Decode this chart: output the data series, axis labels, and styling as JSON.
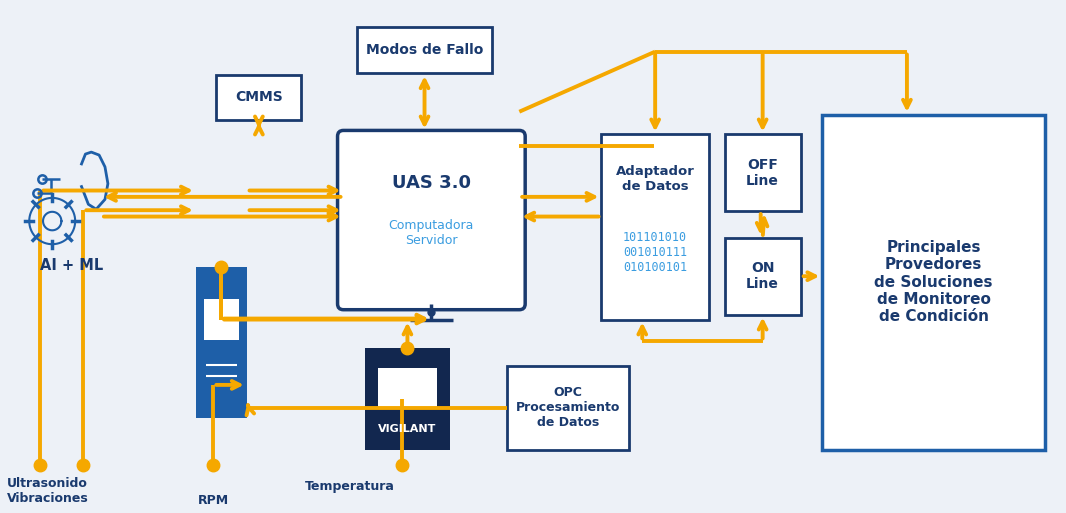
{
  "bg_color": "#edf1f7",
  "dark_blue": "#1a3a6e",
  "mid_blue": "#1e5fa8",
  "light_blue": "#3b9de0",
  "gold": "#f5a800",
  "box_bg": "#ffffff",
  "uas_title": "UAS 3.0",
  "uas_sub": "Computadora\nServidor",
  "cmms_label": "CMMS",
  "modos_label": "Modos de Fallo",
  "adaptador_label": "Adaptador\nde Datos",
  "binary_label": "101101010\n001010111\n010100101",
  "offline_label": "OFF\nLine",
  "online_label": "ON\nLine",
  "proveedores_label": "Principales\nProvedores\nde Soluciones\nde Monitoreo\nde Condición",
  "opc_label": "OPC\nProcesamiento\nde Datos",
  "vigilant_label": "VIGILANT",
  "ai_label": "AI + ML",
  "ultrasonido_label": "Ultrasonido\nVibraciones",
  "rpm_label": "RPM",
  "temperatura_label": "Temperatura"
}
